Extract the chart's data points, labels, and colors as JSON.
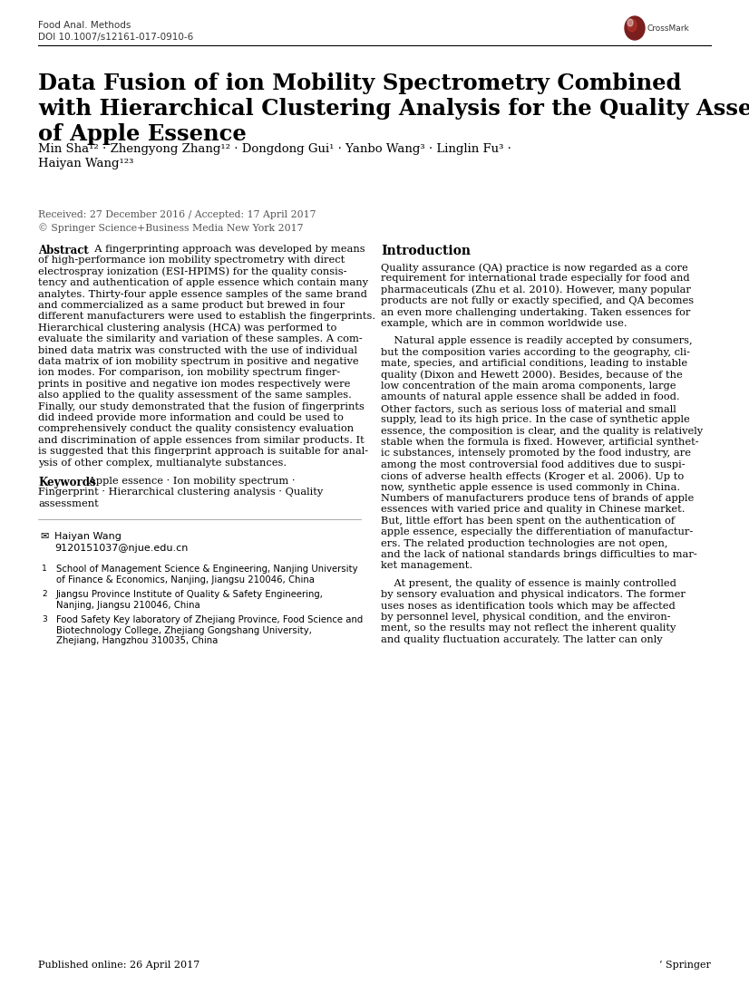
{
  "journal_line1": "Food Anal. Methods",
  "journal_line2": "DOI 10.1007/s12161-017-0910-6",
  "title_line1": "Data Fusion of ion Mobility Spectrometry Combined",
  "title_line2": "with Hierarchical Clustering Analysis for the Quality Assessment",
  "title_line3": "of Apple Essence",
  "authors_line1": "Min Sha¹² · Zhengyong Zhang¹² · Dongdong Gui¹ · Yanbo Wang³ · Linglin Fu³ ·",
  "authors_line2": "Haiyan Wang¹²³",
  "received": "Received: 27 December 2016 / Accepted: 17 April 2017",
  "copyright": "© Springer Science+Business Media New York 2017",
  "abstract_label": "Abstract",
  "abstract_lines": [
    "  A fingerprinting approach was developed by means",
    "of high-performance ion mobility spectrometry with direct",
    "electrospray ionization (ESI-HPIMS) for the quality consis-",
    "tency and authentication of apple essence which contain many",
    "analytes. Thirty-four apple essence samples of the same brand",
    "and commercialized as a same product but brewed in four",
    "different manufacturers were used to establish the fingerprints.",
    "Hierarchical clustering analysis (HCA) was performed to",
    "evaluate the similarity and variation of these samples. A com-",
    "bined data matrix was constructed with the use of individual",
    "data matrix of ion mobility spectrum in positive and negative",
    "ion modes. For comparison, ion mobility spectrum finger-",
    "prints in positive and negative ion modes respectively were",
    "also applied to the quality assessment of the same samples.",
    "Finally, our study demonstrated that the fusion of fingerprints",
    "did indeed provide more information and could be used to",
    "comprehensively conduct the quality consistency evaluation",
    "and discrimination of apple essences from similar products. It",
    "is suggested that this fingerprint approach is suitable for anal-",
    "ysis of other complex, multianalyte substances."
  ],
  "keywords_label": "Keywords",
  "keywords_lines": [
    " Apple essence · Ion mobility spectrum ·",
    "Fingerprint · Hierarchical clustering analysis · Quality",
    "assessment"
  ],
  "contact_icon": "✉",
  "contact_name": "Haiyan Wang",
  "contact_email": "9120151037@njue.edu.cn",
  "affil1_num": "1",
  "affil1_line1": "School of Management Science & Engineering, Nanjing University",
  "affil1_line2": "of Finance & Economics, Nanjing, Jiangsu 210046, China",
  "affil2_num": "2",
  "affil2_line1": "Jiangsu Province Institute of Quality & Safety Engineering,",
  "affil2_line2": "Nanjing, Jiangsu 210046, China",
  "affil3_num": "3",
  "affil3_line1": "Food Safety Key laboratory of Zhejiang Province, Food Science and",
  "affil3_line2": "Biotechnology College, Zhejiang Gongshang University,",
  "affil3_line3": "Zhejiang, Hangzhou 310035, China",
  "published": "Published online: 26 April 2017",
  "springer_logo": "⨉ Springer",
  "intro_title": "Introduction",
  "intro_p1_lines": [
    "Quality assurance (QA) practice is now regarded as a core",
    "requirement for international trade especially for food and",
    "pharmaceuticals (Zhu et al. 2010). However, many popular",
    "products are not fully or exactly specified, and QA becomes",
    "an even more challenging undertaking. Taken essences for",
    "example, which are in common worldwide use."
  ],
  "intro_p2_lines": [
    "    Natural apple essence is readily accepted by consumers,",
    "but the composition varies according to the geography, cli-",
    "mate, species, and artificial conditions, leading to instable",
    "quality (Dixon and Hewett 2000). Besides, because of the",
    "low concentration of the main aroma components, large",
    "amounts of natural apple essence shall be added in food.",
    "Other factors, such as serious loss of material and small",
    "supply, lead to its high price. In the case of synthetic apple",
    "essence, the composition is clear, and the quality is relatively",
    "stable when the formula is fixed. However, artificial synthet-",
    "ic substances, intensely promoted by the food industry, are",
    "among the most controversial food additives due to suspi-",
    "cions of adverse health effects (Kroger et al. 2006). Up to",
    "now, synthetic apple essence is used commonly in China.",
    "Numbers of manufacturers produce tens of brands of apple",
    "essences with varied price and quality in Chinese market.",
    "But, little effort has been spent on the authentication of",
    "apple essence, especially the differentiation of manufactur-",
    "ers. The related production technologies are not open,",
    "and the lack of national standards brings difficulties to mar-",
    "ket management."
  ],
  "intro_p3_lines": [
    "    At present, the quality of essence is mainly controlled",
    "by sensory evaluation and physical indicators. The former",
    "uses noses as identification tools which may be affected",
    "by personnel level, physical condition, and the environ-",
    "ment, so the results may not reflect the inherent quality",
    "and quality fluctuation accurately. The latter can only"
  ],
  "bg": "#ffffff",
  "fg": "#000000",
  "gray": "#444444",
  "blue_link": "#1a5276"
}
